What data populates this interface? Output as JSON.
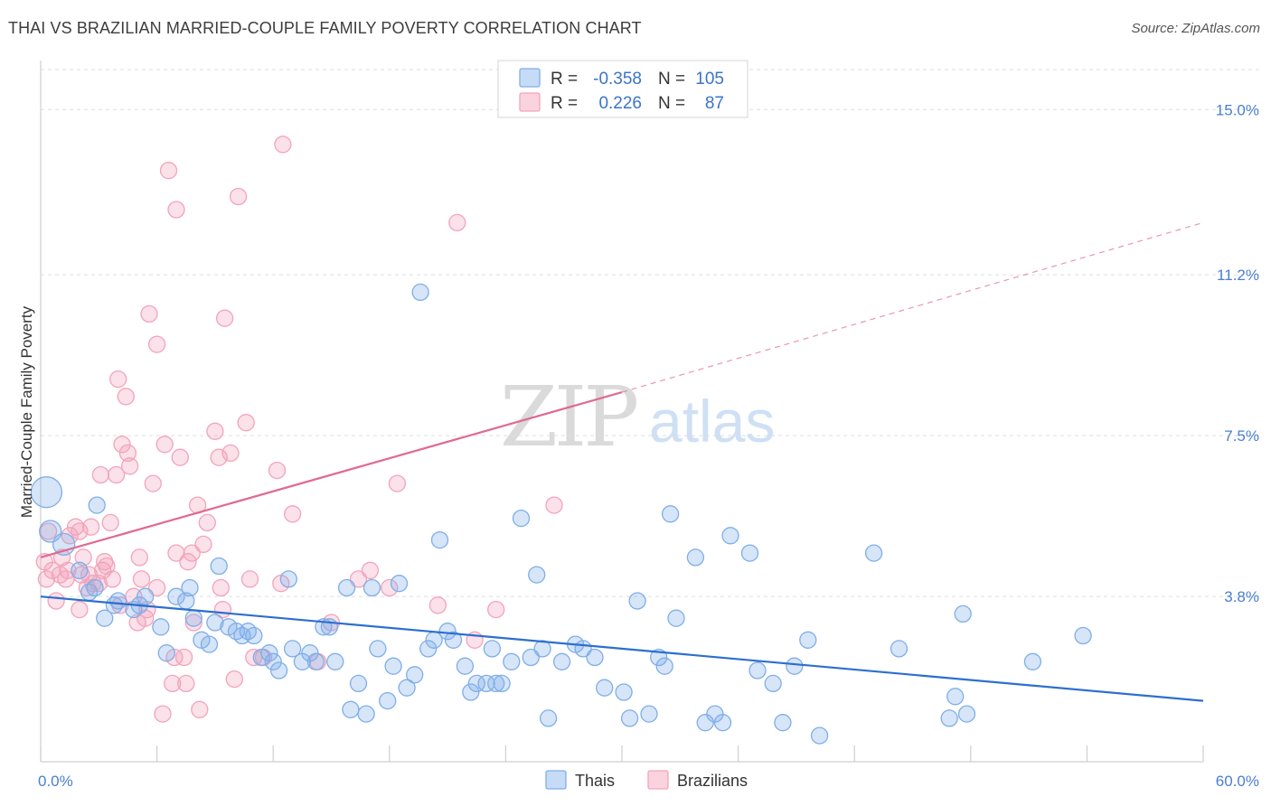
{
  "title": "THAI VS BRAZILIAN MARRIED-COUPLE FAMILY POVERTY CORRELATION CHART",
  "source": "Source: ZipAtlas.com",
  "watermark": {
    "zip": "ZIP",
    "atlas": "atlas"
  },
  "legend": {
    "rows": [
      {
        "r_label": "R =",
        "r_value": "-0.358",
        "n_label": "N =",
        "n_value": "105",
        "color": "#7faee8"
      },
      {
        "r_label": "R =",
        "r_value": "0.226",
        "n_label": "N =",
        "n_value": "87",
        "color": "#f3a3ba"
      }
    ]
  },
  "bottom_legend": [
    {
      "label": "Thais",
      "color": "#7faee8"
    },
    {
      "label": "Brazilians",
      "color": "#f3a3ba"
    }
  ],
  "chart_data": {
    "type": "scatter",
    "title": "THAI VS BRAZILIAN MARRIED-COUPLE FAMILY POVERTY CORRELATION CHART",
    "xlabel": "",
    "ylabel": "Married-Couple Family Poverty",
    "xlim": [
      0,
      60
    ],
    "ylim": [
      0,
      15.9
    ],
    "x_tick_labels": [
      "0.0%",
      "60.0%"
    ],
    "y_ticks": [
      3.8,
      7.5,
      11.2,
      15.0
    ],
    "y_tick_labels": [
      "3.8%",
      "7.5%",
      "11.2%",
      "15.0%"
    ],
    "grid": true,
    "legend_position": "top-center",
    "series": [
      {
        "name": "Thais",
        "color": "#7faee8",
        "line_color": "#2c6fce",
        "trend": {
          "x0": 0,
          "y0": 3.8,
          "x1": 60,
          "y1": 1.4
        },
        "points": [
          [
            0.3,
            6.2
          ],
          [
            0.5,
            5.3
          ],
          [
            1.2,
            5.0
          ],
          [
            2.0,
            4.4
          ],
          [
            2.5,
            3.9
          ],
          [
            2.8,
            4.0
          ],
          [
            2.9,
            5.9
          ],
          [
            3.3,
            3.3
          ],
          [
            3.8,
            3.6
          ],
          [
            4.0,
            3.7
          ],
          [
            4.8,
            3.5
          ],
          [
            5.1,
            3.6
          ],
          [
            5.4,
            3.8
          ],
          [
            6.2,
            3.1
          ],
          [
            6.5,
            2.5
          ],
          [
            7.0,
            3.8
          ],
          [
            7.5,
            3.7
          ],
          [
            7.7,
            4.0
          ],
          [
            7.9,
            3.3
          ],
          [
            8.3,
            2.8
          ],
          [
            8.7,
            2.7
          ],
          [
            9.0,
            3.2
          ],
          [
            9.2,
            4.5
          ],
          [
            9.7,
            3.1
          ],
          [
            10.1,
            3.0
          ],
          [
            10.4,
            2.9
          ],
          [
            10.7,
            3.0
          ],
          [
            11.0,
            2.9
          ],
          [
            11.4,
            2.4
          ],
          [
            11.8,
            2.5
          ],
          [
            12.0,
            2.3
          ],
          [
            12.3,
            2.1
          ],
          [
            12.8,
            4.2
          ],
          [
            13.0,
            2.6
          ],
          [
            13.5,
            2.3
          ],
          [
            13.9,
            2.5
          ],
          [
            14.2,
            2.3
          ],
          [
            14.6,
            3.1
          ],
          [
            14.9,
            3.1
          ],
          [
            15.2,
            2.3
          ],
          [
            15.8,
            4.0
          ],
          [
            16.0,
            1.2
          ],
          [
            16.4,
            1.8
          ],
          [
            16.8,
            1.1
          ],
          [
            17.1,
            4.0
          ],
          [
            17.4,
            2.6
          ],
          [
            17.9,
            1.4
          ],
          [
            18.2,
            2.2
          ],
          [
            18.5,
            4.1
          ],
          [
            18.9,
            1.7
          ],
          [
            19.3,
            2.0
          ],
          [
            19.6,
            10.8
          ],
          [
            20.0,
            2.6
          ],
          [
            20.3,
            2.8
          ],
          [
            20.6,
            5.1
          ],
          [
            21.0,
            3.0
          ],
          [
            21.3,
            2.8
          ],
          [
            21.9,
            2.2
          ],
          [
            22.2,
            1.6
          ],
          [
            22.5,
            1.8
          ],
          [
            23.0,
            1.8
          ],
          [
            23.3,
            2.6
          ],
          [
            23.5,
            1.8
          ],
          [
            23.8,
            1.8
          ],
          [
            24.3,
            2.3
          ],
          [
            24.8,
            5.6
          ],
          [
            25.3,
            2.4
          ],
          [
            25.6,
            4.3
          ],
          [
            25.9,
            2.6
          ],
          [
            26.2,
            1.0
          ],
          [
            26.9,
            2.3
          ],
          [
            27.6,
            2.7
          ],
          [
            28.0,
            2.6
          ],
          [
            28.6,
            2.4
          ],
          [
            29.1,
            1.7
          ],
          [
            30.1,
            1.6
          ],
          [
            30.4,
            1.0
          ],
          [
            30.8,
            3.7
          ],
          [
            31.4,
            1.1
          ],
          [
            31.9,
            2.4
          ],
          [
            32.2,
            2.2
          ],
          [
            32.5,
            5.7
          ],
          [
            32.8,
            3.3
          ],
          [
            33.8,
            4.7
          ],
          [
            34.3,
            0.9
          ],
          [
            34.8,
            1.1
          ],
          [
            35.2,
            0.9
          ],
          [
            35.6,
            5.2
          ],
          [
            36.6,
            4.8
          ],
          [
            37.0,
            2.1
          ],
          [
            37.8,
            1.8
          ],
          [
            38.3,
            0.9
          ],
          [
            38.9,
            2.2
          ],
          [
            39.6,
            2.8
          ],
          [
            40.2,
            0.6
          ],
          [
            43.0,
            4.8
          ],
          [
            44.3,
            2.6
          ],
          [
            46.9,
            1.0
          ],
          [
            47.2,
            1.5
          ],
          [
            47.6,
            3.4
          ],
          [
            47.8,
            1.1
          ],
          [
            51.2,
            2.3
          ],
          [
            53.8,
            2.9
          ]
        ]
      },
      {
        "name": "Brazilians",
        "color": "#f3a3ba",
        "line_color": "#e06a90",
        "trend": {
          "x0": 0,
          "y0": 4.7,
          "x1": 30,
          "y1": 8.5,
          "dash_to_x": 60,
          "dash_to_y": 12.4
        },
        "points": [
          [
            0.2,
            4.6
          ],
          [
            0.3,
            4.2
          ],
          [
            0.4,
            5.3
          ],
          [
            0.6,
            4.4
          ],
          [
            0.8,
            3.7
          ],
          [
            1.0,
            4.3
          ],
          [
            1.1,
            4.7
          ],
          [
            1.3,
            4.2
          ],
          [
            1.4,
            4.4
          ],
          [
            1.5,
            5.2
          ],
          [
            1.8,
            5.4
          ],
          [
            2.0,
            5.3
          ],
          [
            2.0,
            3.5
          ],
          [
            2.1,
            4.3
          ],
          [
            2.2,
            4.7
          ],
          [
            2.4,
            4.0
          ],
          [
            2.5,
            4.3
          ],
          [
            2.6,
            5.4
          ],
          [
            2.7,
            4.1
          ],
          [
            3.0,
            4.1
          ],
          [
            3.1,
            6.6
          ],
          [
            3.2,
            4.4
          ],
          [
            3.3,
            4.6
          ],
          [
            3.4,
            4.5
          ],
          [
            3.6,
            5.5
          ],
          [
            3.7,
            4.2
          ],
          [
            3.9,
            6.6
          ],
          [
            4.0,
            8.8
          ],
          [
            4.1,
            3.6
          ],
          [
            4.2,
            7.3
          ],
          [
            4.4,
            8.4
          ],
          [
            4.5,
            7.1
          ],
          [
            4.6,
            6.8
          ],
          [
            4.8,
            3.8
          ],
          [
            5.0,
            3.2
          ],
          [
            5.1,
            4.7
          ],
          [
            5.2,
            4.2
          ],
          [
            5.4,
            3.3
          ],
          [
            5.5,
            3.5
          ],
          [
            5.6,
            10.3
          ],
          [
            5.8,
            6.4
          ],
          [
            6.0,
            9.6
          ],
          [
            6.0,
            4.0
          ],
          [
            6.3,
            1.1
          ],
          [
            6.4,
            7.3
          ],
          [
            6.6,
            13.6
          ],
          [
            6.8,
            1.8
          ],
          [
            6.9,
            2.4
          ],
          [
            7.0,
            12.7
          ],
          [
            7.0,
            4.8
          ],
          [
            7.2,
            7.0
          ],
          [
            7.4,
            2.4
          ],
          [
            7.5,
            1.8
          ],
          [
            7.6,
            4.6
          ],
          [
            7.8,
            4.8
          ],
          [
            7.9,
            3.2
          ],
          [
            8.1,
            5.9
          ],
          [
            8.2,
            1.2
          ],
          [
            8.4,
            5.0
          ],
          [
            8.6,
            5.5
          ],
          [
            9.0,
            7.6
          ],
          [
            9.2,
            7.0
          ],
          [
            9.3,
            4.0
          ],
          [
            9.4,
            3.5
          ],
          [
            9.5,
            10.2
          ],
          [
            9.8,
            7.1
          ],
          [
            10.0,
            1.9
          ],
          [
            10.2,
            13.0
          ],
          [
            10.6,
            7.8
          ],
          [
            10.8,
            4.2
          ],
          [
            11.0,
            2.4
          ],
          [
            11.5,
            2.4
          ],
          [
            12.2,
            6.7
          ],
          [
            12.4,
            4.1
          ],
          [
            12.5,
            14.2
          ],
          [
            13.0,
            5.7
          ],
          [
            14.3,
            2.3
          ],
          [
            15.0,
            3.2
          ],
          [
            16.4,
            4.2
          ],
          [
            17.0,
            4.4
          ],
          [
            18.0,
            4.0
          ],
          [
            18.4,
            6.4
          ],
          [
            20.5,
            3.6
          ],
          [
            21.5,
            12.4
          ],
          [
            22.4,
            2.8
          ],
          [
            23.5,
            3.5
          ],
          [
            26.5,
            5.9
          ]
        ]
      }
    ]
  }
}
